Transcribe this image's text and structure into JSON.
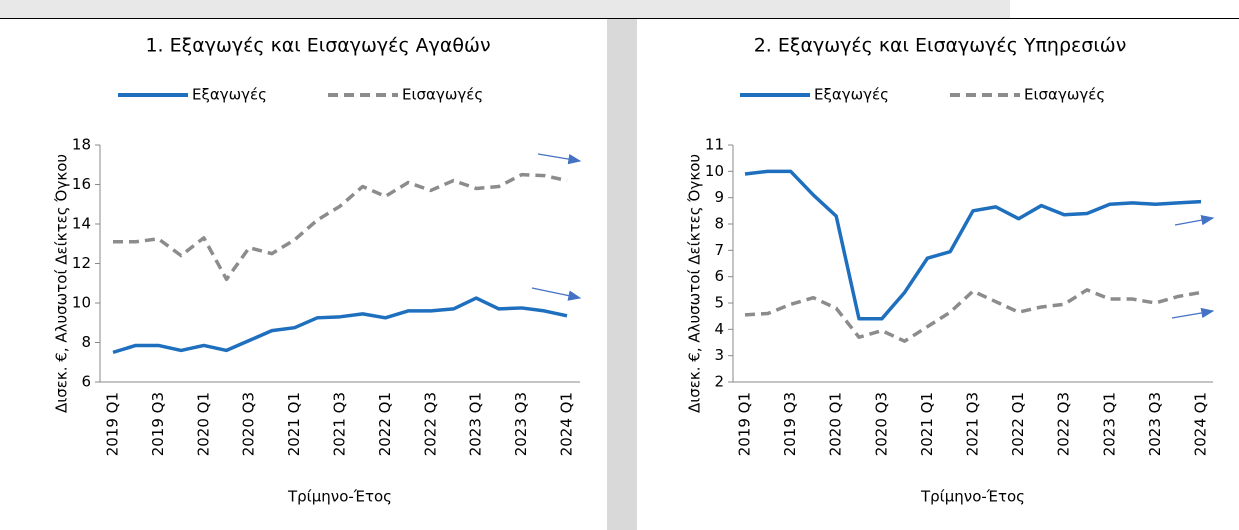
{
  "charts": [
    {
      "chart_data": {
        "type": "line",
        "title": "1. Εξαγωγές και Εισαγωγές Αγαθών",
        "x_label": "Τρίμηνο-Έτος",
        "y_label": "Δισεκ. €, Αλυσωτοί Δείκτες Όγκου",
        "categories": [
          "2019 Q1",
          null,
          "2019 Q3",
          null,
          "2020 Q1",
          null,
          "2020 Q3",
          null,
          "2021 Q1",
          null,
          "2021 Q3",
          null,
          "2022 Q1",
          null,
          "2022 Q3",
          null,
          "2023 Q1",
          null,
          "2023 Q3",
          null,
          "2024 Q1"
        ],
        "series": [
          {
            "name": "Εξαγωγές",
            "color": "#1f6fbf",
            "dash": false,
            "values": [
              7.5,
              7.85,
              7.85,
              7.6,
              7.85,
              7.6,
              8.1,
              8.6,
              8.75,
              9.25,
              9.3,
              9.45,
              9.25,
              9.6,
              9.6,
              9.7,
              10.25,
              9.7,
              9.75,
              9.6,
              9.35
            ]
          },
          {
            "name": "Εισαγωγές",
            "color": "#8c8c8c",
            "dash": true,
            "values": [
              13.1,
              13.1,
              13.25,
              12.4,
              13.3,
              11.2,
              12.8,
              12.5,
              13.2,
              14.2,
              14.9,
              15.9,
              15.4,
              16.1,
              15.7,
              16.2,
              15.8,
              15.9,
              16.5,
              16.45,
              16.2
            ]
          }
        ],
        "ylim": [
          6,
          18
        ],
        "yticks": [
          6,
          8,
          10,
          12,
          14,
          16,
          18
        ],
        "grid": false,
        "legend": "top"
      }
    },
    {
      "chart_data": {
        "type": "line",
        "title": "2. Εξαγωγές και Εισαγωγές Υπηρεσιών",
        "x_label": "Τρίμηνο-Έτος",
        "y_label": "Δισεκ. €, Αλυσωτοί Δείκτες Όγκου",
        "categories": [
          "2019 Q1",
          null,
          "2019 Q3",
          null,
          "2020 Q1",
          null,
          "2020 Q3",
          null,
          "2021 Q1",
          null,
          "2021 Q3",
          null,
          "2022 Q1",
          null,
          "2022 Q3",
          null,
          "2023 Q1",
          null,
          "2023 Q3",
          null,
          "2024 Q1"
        ],
        "series": [
          {
            "name": "Εξαγωγές",
            "color": "#1f6fbf",
            "dash": false,
            "values": [
              9.9,
              10.0,
              10.0,
              9.1,
              8.3,
              4.4,
              4.4,
              5.4,
              6.7,
              6.95,
              8.5,
              8.65,
              8.2,
              8.7,
              8.35,
              8.4,
              8.75,
              8.8,
              8.75,
              8.8,
              8.85
            ]
          },
          {
            "name": "Εισαγωγές",
            "color": "#8c8c8c",
            "dash": true,
            "values": [
              4.55,
              4.6,
              4.95,
              5.2,
              4.8,
              3.7,
              3.95,
              3.55,
              4.1,
              4.65,
              5.45,
              5.05,
              4.65,
              4.85,
              4.95,
              5.5,
              5.15,
              5.15,
              5.0,
              5.25,
              5.4
            ]
          }
        ],
        "ylim": [
          2,
          11
        ],
        "yticks": [
          2,
          3,
          4,
          5,
          6,
          7,
          8,
          9,
          10,
          11
        ],
        "grid": false,
        "legend": "top"
      }
    }
  ]
}
